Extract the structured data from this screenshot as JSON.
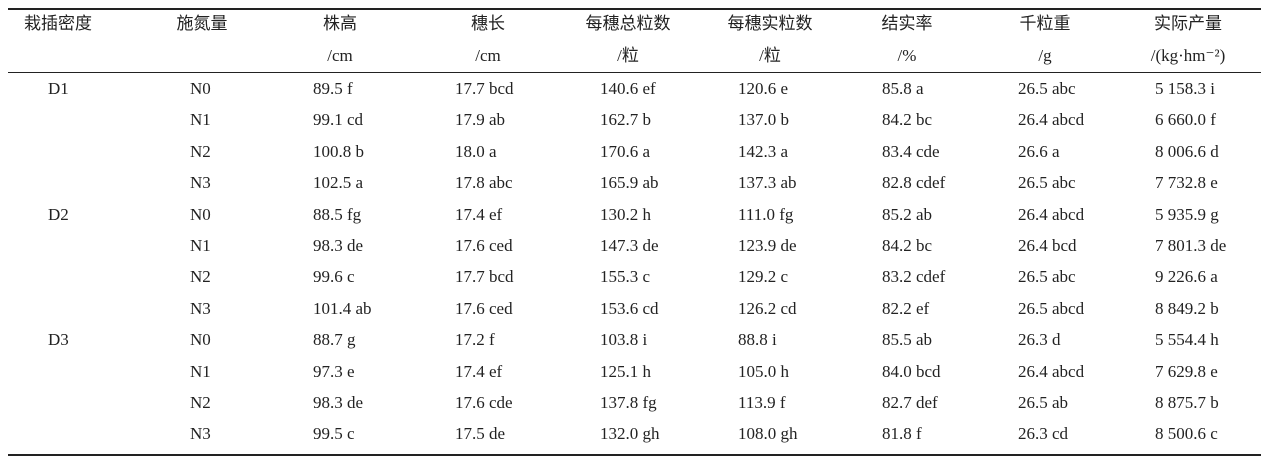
{
  "table": {
    "header": [
      {
        "title": "栽插密度"
      },
      {
        "title": "施氮量"
      },
      {
        "title": "株高",
        "unit": "/cm"
      },
      {
        "title": "穗长",
        "unit": "/cm"
      },
      {
        "title": "每穗总粒数",
        "unit": "/粒"
      },
      {
        "title": "每穗实粒数",
        "unit": "/粒"
      },
      {
        "title": "结实率",
        "unit": "/%"
      },
      {
        "title": "千粒重",
        "unit": "/g"
      },
      {
        "title": "实际产量",
        "unit": "/(kg·hm⁻²)"
      }
    ],
    "groups": [
      {
        "density": "D1",
        "rows": [
          [
            "N0",
            "89.5 f",
            "17.7 bcd",
            "140.6 ef",
            "120.6 e",
            "85.8 a",
            "26.5 abc",
            "5 158.3 i"
          ],
          [
            "N1",
            "99.1 cd",
            "17.9 ab",
            "162.7 b",
            "137.0 b",
            "84.2 bc",
            "26.4 abcd",
            "6 660.0 f"
          ],
          [
            "N2",
            "100.8 b",
            "18.0 a",
            "170.6 a",
            "142.3 a",
            "83.4 cde",
            "26.6 a",
            "8 006.6 d"
          ],
          [
            "N3",
            "102.5 a",
            "17.8 abc",
            "165.9 ab",
            "137.3 ab",
            "82.8 cdef",
            "26.5 abc",
            "7 732.8 e"
          ]
        ]
      },
      {
        "density": "D2",
        "rows": [
          [
            "N0",
            "88.5 fg",
            "17.4 ef",
            "130.2 h",
            "111.0 fg",
            "85.2 ab",
            "26.4 abcd",
            "5 935.9 g"
          ],
          [
            "N1",
            "98.3 de",
            "17.6 ced",
            "147.3 de",
            "123.9 de",
            "84.2 bc",
            "26.4 bcd",
            "7 801.3 de"
          ],
          [
            "N2",
            "99.6 c",
            "17.7 bcd",
            "155.3 c",
            "129.2 c",
            "83.2 cdef",
            "26.5 abc",
            "9 226.6 a"
          ],
          [
            "N3",
            "101.4 ab",
            "17.6 ced",
            "153.6 cd",
            "126.2 cd",
            "82.2 ef",
            "26.5 abcd",
            "8 849.2 b"
          ]
        ]
      },
      {
        "density": "D3",
        "rows": [
          [
            "N0",
            "88.7 g",
            "17.2 f",
            "103.8 i",
            "88.8 i",
            "85.5 ab",
            "26.3 d",
            "5 554.4 h"
          ],
          [
            "N1",
            "97.3 e",
            "17.4 ef",
            "125.1 h",
            "105.0 h",
            "84.0 bcd",
            "26.4 abcd",
            "7 629.8 e"
          ],
          [
            "N2",
            "98.3 de",
            "17.6 cde",
            "137.8 fg",
            "113.9 f",
            "82.7 def",
            "26.5 ab",
            "8 875.7 b"
          ],
          [
            "N3",
            "99.5 c",
            "17.5 de",
            "132.0 gh",
            "108.0 gh",
            "81.8 f",
            "26.3 cd",
            "8 500.6 c"
          ]
        ]
      }
    ]
  }
}
